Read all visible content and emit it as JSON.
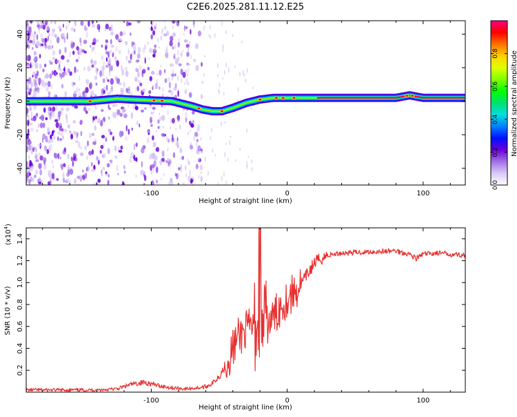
{
  "title": "C2E6.2025.281.11.12.E25",
  "chart_data": [
    {
      "type": "heatmap",
      "name": "spectrogram",
      "xlabel": "Height of straight line (km)",
      "ylabel": "Frequency (Hz)",
      "xlim": [
        -192,
        131
      ],
      "ylim": [
        -50,
        48
      ],
      "xticks": [
        -100,
        0,
        100
      ],
      "xtick_labels": [
        "-100",
        "0",
        "100"
      ],
      "yticks": [
        -40,
        -20,
        0,
        20,
        40
      ],
      "ytick_labels": [
        "-40",
        "-20",
        "0",
        "20",
        "40"
      ],
      "ridge": {
        "x": [
          -192,
          -145,
          -125,
          -115,
          -100,
          -85,
          -70,
          -62,
          -55,
          -48,
          -40,
          -30,
          -20,
          -10,
          0,
          20,
          50,
          80,
          90,
          100,
          131
        ],
        "y": [
          0,
          0,
          1.5,
          1.0,
          0.5,
          0,
          -3,
          -5,
          -6,
          -6,
          -4,
          -1,
          1,
          2,
          2,
          2,
          2,
          2,
          3.5,
          2,
          2
        ]
      },
      "colorbar": {
        "label": "Normalized spectral amplitude",
        "range": [
          0,
          1
        ],
        "ticks": [
          0.0,
          0.2,
          0.4,
          0.6,
          0.8
        ],
        "tick_labels": [
          "0.0",
          "0.2",
          "0.4",
          "0.6",
          "0.8"
        ],
        "colors": [
          "#ffffff",
          "#d9c9f5",
          "#a070e8",
          "#6a00d8",
          "#0010ff",
          "#0080ff",
          "#00e0e0",
          "#00e070",
          "#00ff00",
          "#80ff00",
          "#e0ff00",
          "#ffd000",
          "#ff7000",
          "#ff0000",
          "#ff0080"
        ]
      }
    },
    {
      "type": "line",
      "name": "snr",
      "xlabel": "Height of straight line (km)",
      "ylabel": "SNR (10 * v/v)",
      "scale_label": "(x10",
      "scale_exp": "4",
      "scale_close": ")",
      "xlim": [
        -192,
        131
      ],
      "ylim": [
        0,
        1.5
      ],
      "xticks": [
        -100,
        0,
        100
      ],
      "xtick_labels": [
        "-100",
        "0",
        "100"
      ],
      "yticks": [
        0.2,
        0.4,
        0.6,
        0.8,
        1.0,
        1.2,
        1.4
      ],
      "ytick_labels": [
        "0.2",
        "0.4",
        "0.6",
        "0.8",
        "1.0",
        "1.2",
        "1.4"
      ],
      "line_color": "#e83030",
      "series": [
        {
          "name": "SNR",
          "x": [
            -192,
            -160,
            -140,
            -125,
            -115,
            -105,
            -95,
            -85,
            -75,
            -65,
            -60,
            -55,
            -50,
            -45,
            -40,
            -36,
            -32,
            -28,
            -24,
            -20,
            -18,
            -16,
            -12,
            -8,
            -4,
            0,
            4,
            8,
            12,
            16,
            20,
            25,
            30,
            40,
            60,
            80,
            90,
            95,
            100,
            110,
            120,
            131
          ],
          "y": [
            0.02,
            0.02,
            0.02,
            0.03,
            0.07,
            0.09,
            0.06,
            0.04,
            0.03,
            0.04,
            0.05,
            0.08,
            0.15,
            0.25,
            0.4,
            0.5,
            0.55,
            0.58,
            0.6,
            0.65,
            0.62,
            0.6,
            0.65,
            0.72,
            0.8,
            0.85,
            0.9,
            0.95,
            1.02,
            1.1,
            1.18,
            1.22,
            1.25,
            1.27,
            1.28,
            1.29,
            1.26,
            1.22,
            1.26,
            1.27,
            1.26,
            1.25
          ]
        }
      ]
    }
  ]
}
